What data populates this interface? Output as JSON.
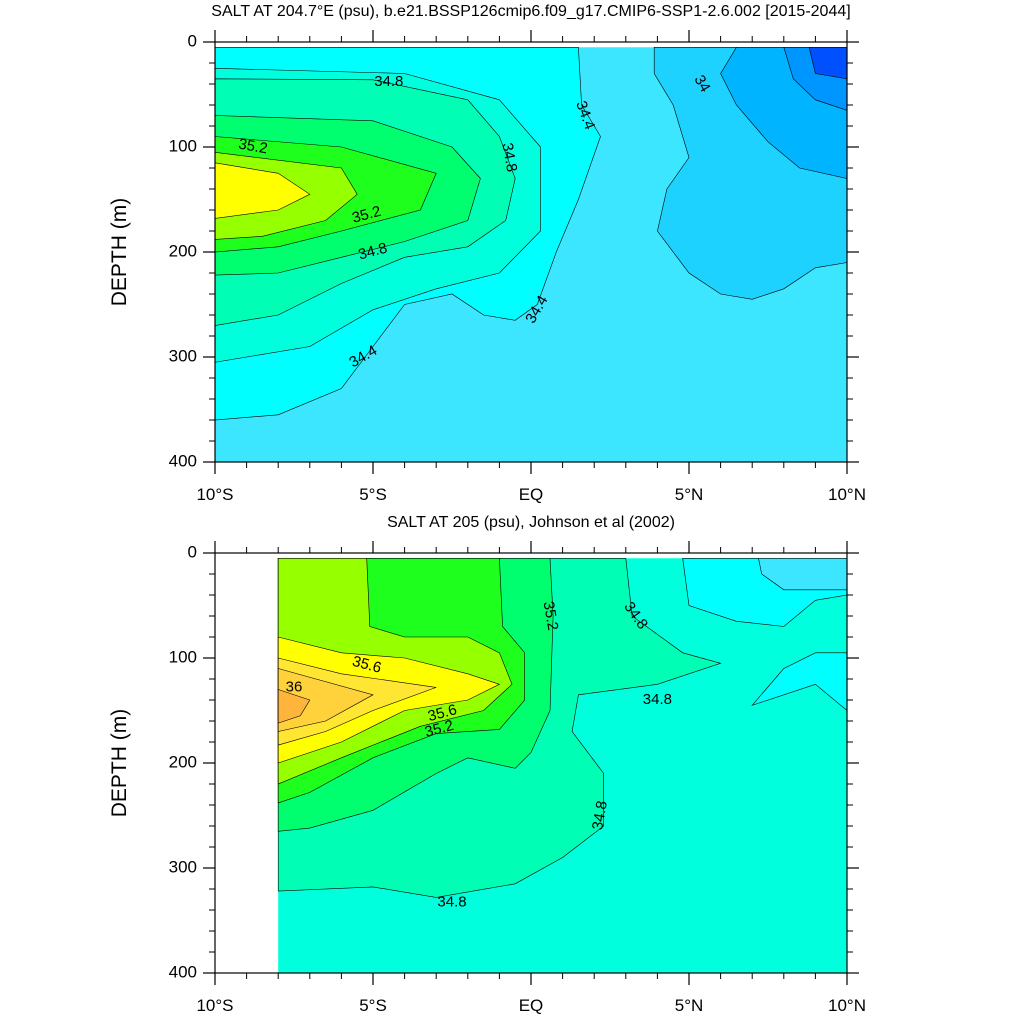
{
  "chart_data": [
    {
      "type": "contour",
      "title": "SALT AT 204.7°E (psu), b.e21.BSSP126cmip6.f09_g17.CMIP6-SSP1-2.6.002 [2015-2044]",
      "y_label": "DEPTH (m)",
      "xlim": [
        -10,
        10
      ],
      "xticks": [
        {
          "value": -10,
          "label": "10°S"
        },
        {
          "value": -5,
          "label": "5°S"
        },
        {
          "value": 0,
          "label": "EQ"
        },
        {
          "value": 5,
          "label": "5°N"
        },
        {
          "value": 10,
          "label": "10°N"
        }
      ],
      "ylim": [
        0,
        400
      ],
      "y_inverted": true,
      "yticks": [
        0,
        100,
        200,
        300,
        400
      ],
      "levels": [
        33.6,
        33.8,
        34,
        34.2,
        34.4,
        34.6,
        34.8,
        35,
        35.2,
        35.4,
        35.6,
        35.8,
        36,
        36.2
      ],
      "colors": [
        "#0050ff",
        "#0096ff",
        "#00b4ff",
        "#1ed2ff",
        "#3ce6ff",
        "#00ffff",
        "#00ffdc",
        "#00ffb4",
        "#00ff6e",
        "#1eff1e",
        "#96ff00",
        "#ffff00",
        "#ffe632",
        "#ffd23c",
        "#ffb43c"
      ],
      "contour_labels": [
        34.8,
        35.2,
        34.8,
        34.4,
        35.2,
        34.8,
        34.4,
        34.4,
        34
      ]
    },
    {
      "type": "contour",
      "title": "SALT AT 205 (psu), Johnson et al (2002)",
      "y_label": "DEPTH (m)",
      "xlim": [
        -10,
        10
      ],
      "xticks": [
        {
          "value": -10,
          "label": "10°S"
        },
        {
          "value": -5,
          "label": "5°S"
        },
        {
          "value": 0,
          "label": "EQ"
        },
        {
          "value": 5,
          "label": "5°N"
        },
        {
          "value": 10,
          "label": "10°N"
        }
      ],
      "ylim": [
        0,
        400
      ],
      "y_inverted": true,
      "yticks": [
        0,
        100,
        200,
        300,
        400
      ],
      "levels": [
        33.6,
        33.8,
        34,
        34.2,
        34.4,
        34.6,
        34.8,
        35,
        35.2,
        35.4,
        35.6,
        35.8,
        36,
        36.2
      ],
      "colors": [
        "#0050ff",
        "#0096ff",
        "#00b4ff",
        "#1ed2ff",
        "#3ce6ff",
        "#00ffff",
        "#00ffdc",
        "#00ffb4",
        "#00ff6e",
        "#1eff1e",
        "#96ff00",
        "#ffff00",
        "#ffe632",
        "#ffd23c",
        "#ffb43c"
      ],
      "contour_labels": [
        35.6,
        36,
        35.6,
        35.2,
        35.2,
        34.8,
        34.8,
        34.8,
        34.8
      ]
    }
  ]
}
